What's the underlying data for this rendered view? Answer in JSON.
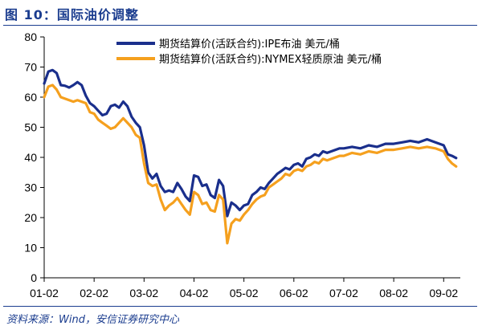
{
  "figure": {
    "title": "图 10：国际油价调整",
    "source": "资料来源：Wind，安信证券研究中心"
  },
  "chart_data": {
    "type": "line",
    "title": "",
    "xlabel": "",
    "ylabel": "",
    "ylim": [
      0,
      80
    ],
    "yticks": [
      0,
      10,
      20,
      30,
      40,
      50,
      60,
      70,
      80
    ],
    "xlim": [
      "2001-02",
      "2009-06"
    ],
    "xticks": [
      "01-02",
      "02-02",
      "03-02",
      "04-02",
      "05-02",
      "06-02",
      "07-02",
      "08-02",
      "09-02"
    ],
    "grid": false,
    "legend_position": "top-left",
    "series": [
      {
        "name": "期货结算价(活跃合约):IPE布油 美元/桶",
        "color": "#1a2f8c",
        "points": [
          [
            "2001-02",
            64.5
          ],
          [
            "2001-03",
            68.5
          ],
          [
            "2001-04",
            69.0
          ],
          [
            "2001-05",
            68.0
          ],
          [
            "2001-06",
            64.0
          ],
          [
            "2001-07",
            63.8
          ],
          [
            "2001-08",
            63.2
          ],
          [
            "2001-09",
            64.0
          ],
          [
            "2001-10",
            65.0
          ],
          [
            "2001-11",
            64.0
          ],
          [
            "2001-12",
            60.5
          ],
          [
            "2002-01",
            58.0
          ],
          [
            "2002-02",
            57.0
          ],
          [
            "2002-03",
            55.5
          ],
          [
            "2002-04",
            54.0
          ],
          [
            "2002-05",
            54.5
          ],
          [
            "2002-06",
            57.0
          ],
          [
            "2002-07",
            57.5
          ],
          [
            "2002-08",
            56.5
          ],
          [
            "2002-09",
            58.5
          ],
          [
            "2002-10",
            57.0
          ],
          [
            "2002-11",
            53.5
          ],
          [
            "2002-12",
            51.5
          ],
          [
            "2003-01",
            50.0
          ],
          [
            "2003-02",
            44.0
          ],
          [
            "2003-03",
            35.0
          ],
          [
            "2003-04",
            33.0
          ],
          [
            "2003-05",
            34.5
          ],
          [
            "2003-06",
            30.5
          ],
          [
            "2003-07",
            28.5
          ],
          [
            "2003-08",
            29.0
          ],
          [
            "2003-09",
            28.5
          ],
          [
            "2003-10",
            31.5
          ],
          [
            "2003-11",
            29.5
          ],
          [
            "2003-12",
            27.0
          ],
          [
            "2004-01",
            25.5
          ],
          [
            "2004-02",
            34.0
          ],
          [
            "2004-03",
            33.5
          ],
          [
            "2004-04",
            30.5
          ],
          [
            "2004-05",
            31.0
          ],
          [
            "2004-06",
            27.5
          ],
          [
            "2004-07",
            26.5
          ],
          [
            "2004-08",
            32.5
          ],
          [
            "2004-09",
            30.5
          ],
          [
            "2004-10",
            20.5
          ],
          [
            "2004-11",
            25.0
          ],
          [
            "2004-12",
            24.0
          ],
          [
            "2005-01",
            22.5
          ],
          [
            "2005-02",
            24.0
          ],
          [
            "2005-03",
            24.5
          ],
          [
            "2005-04",
            27.5
          ],
          [
            "2005-05",
            28.5
          ],
          [
            "2005-06",
            30.0
          ],
          [
            "2005-07",
            29.5
          ],
          [
            "2005-08",
            31.5
          ],
          [
            "2005-09",
            33.0
          ],
          [
            "2005-10",
            34.5
          ],
          [
            "2005-11",
            35.5
          ],
          [
            "2005-12",
            36.5
          ],
          [
            "2006-01",
            36.0
          ],
          [
            "2006-02",
            37.5
          ],
          [
            "2006-03",
            38.0
          ],
          [
            "2006-04",
            37.0
          ],
          [
            "2006-05",
            39.5
          ],
          [
            "2006-06",
            40.0
          ],
          [
            "2006-07",
            41.0
          ],
          [
            "2006-08",
            40.5
          ],
          [
            "2006-09",
            42.0
          ],
          [
            "2006-10",
            41.5
          ],
          [
            "2006-11",
            42.0
          ],
          [
            "2006-12",
            42.5
          ],
          [
            "2007-01",
            43.0
          ],
          [
            "2007-02",
            43.0
          ],
          [
            "2007-04",
            43.5
          ],
          [
            "2007-06",
            43.0
          ],
          [
            "2007-08",
            44.0
          ],
          [
            "2007-10",
            43.5
          ],
          [
            "2007-12",
            44.5
          ],
          [
            "2008-02",
            44.5
          ],
          [
            "2008-04",
            45.0
          ],
          [
            "2008-06",
            45.5
          ],
          [
            "2008-08",
            45.0
          ],
          [
            "2008-10",
            46.0
          ],
          [
            "2008-12",
            45.0
          ],
          [
            "2009-01",
            44.5
          ],
          [
            "2009-02",
            44.0
          ],
          [
            "2009-03",
            41.0
          ],
          [
            "2009-04",
            40.5
          ],
          [
            "2009-05",
            39.8
          ]
        ]
      },
      {
        "name": "期货结算价(活跃合约):NYMEX轻质原油 美元/桶",
        "color": "#f5a01e",
        "points": [
          [
            "2001-02",
            60.0
          ],
          [
            "2001-03",
            63.5
          ],
          [
            "2001-04",
            64.0
          ],
          [
            "2001-05",
            62.5
          ],
          [
            "2001-06",
            60.0
          ],
          [
            "2001-07",
            59.5
          ],
          [
            "2001-08",
            59.0
          ],
          [
            "2001-09",
            58.5
          ],
          [
            "2001-10",
            59.0
          ],
          [
            "2001-12",
            58.0
          ],
          [
            "2002-01",
            55.0
          ],
          [
            "2002-02",
            54.5
          ],
          [
            "2002-03",
            52.5
          ],
          [
            "2002-04",
            51.5
          ],
          [
            "2002-05",
            50.5
          ],
          [
            "2002-06",
            49.5
          ],
          [
            "2002-07",
            50.0
          ],
          [
            "2002-09",
            53.0
          ],
          [
            "2002-10",
            51.5
          ],
          [
            "2002-11",
            50.0
          ],
          [
            "2002-12",
            47.5
          ],
          [
            "2003-01",
            46.5
          ],
          [
            "2003-02",
            38.0
          ],
          [
            "2003-03",
            31.5
          ],
          [
            "2003-04",
            30.5
          ],
          [
            "2003-05",
            31.0
          ],
          [
            "2003-06",
            26.0
          ],
          [
            "2003-07",
            22.5
          ],
          [
            "2003-08",
            24.0
          ],
          [
            "2003-09",
            25.0
          ],
          [
            "2003-10",
            26.5
          ],
          [
            "2003-11",
            24.5
          ],
          [
            "2003-12",
            22.5
          ],
          [
            "2004-01",
            21.0
          ],
          [
            "2004-02",
            28.5
          ],
          [
            "2004-03",
            27.5
          ],
          [
            "2004-04",
            24.5
          ],
          [
            "2004-05",
            25.0
          ],
          [
            "2004-06",
            22.5
          ],
          [
            "2004-07",
            22.0
          ],
          [
            "2004-08",
            27.5
          ],
          [
            "2004-09",
            26.0
          ],
          [
            "2004-10",
            11.5
          ],
          [
            "2004-11",
            18.0
          ],
          [
            "2004-12",
            19.5
          ],
          [
            "2005-01",
            19.0
          ],
          [
            "2005-02",
            21.0
          ],
          [
            "2005-03",
            22.5
          ],
          [
            "2005-04",
            24.5
          ],
          [
            "2005-05",
            26.0
          ],
          [
            "2005-06",
            27.0
          ],
          [
            "2005-07",
            27.5
          ],
          [
            "2005-08",
            30.0
          ],
          [
            "2005-09",
            31.0
          ],
          [
            "2005-10",
            32.0
          ],
          [
            "2005-11",
            33.0
          ],
          [
            "2005-12",
            34.5
          ],
          [
            "2006-01",
            34.0
          ],
          [
            "2006-02",
            35.5
          ],
          [
            "2006-03",
            36.0
          ],
          [
            "2006-04",
            35.5
          ],
          [
            "2006-05",
            37.0
          ],
          [
            "2006-06",
            37.5
          ],
          [
            "2006-07",
            38.5
          ],
          [
            "2006-08",
            38.0
          ],
          [
            "2006-09",
            39.5
          ],
          [
            "2006-10",
            39.0
          ],
          [
            "2006-12",
            40.0
          ],
          [
            "2007-01",
            40.5
          ],
          [
            "2007-02",
            40.5
          ],
          [
            "2007-04",
            41.5
          ],
          [
            "2007-06",
            41.0
          ],
          [
            "2007-08",
            42.0
          ],
          [
            "2007-10",
            41.5
          ],
          [
            "2007-12",
            42.5
          ],
          [
            "2008-02",
            42.5
          ],
          [
            "2008-04",
            43.0
          ],
          [
            "2008-06",
            43.5
          ],
          [
            "2008-08",
            43.0
          ],
          [
            "2008-10",
            43.5
          ],
          [
            "2008-12",
            43.0
          ],
          [
            "2009-01",
            42.5
          ],
          [
            "2009-02",
            42.0
          ],
          [
            "2009-03",
            39.5
          ],
          [
            "2009-04",
            38.0
          ],
          [
            "2009-05",
            37.0
          ]
        ]
      }
    ]
  }
}
